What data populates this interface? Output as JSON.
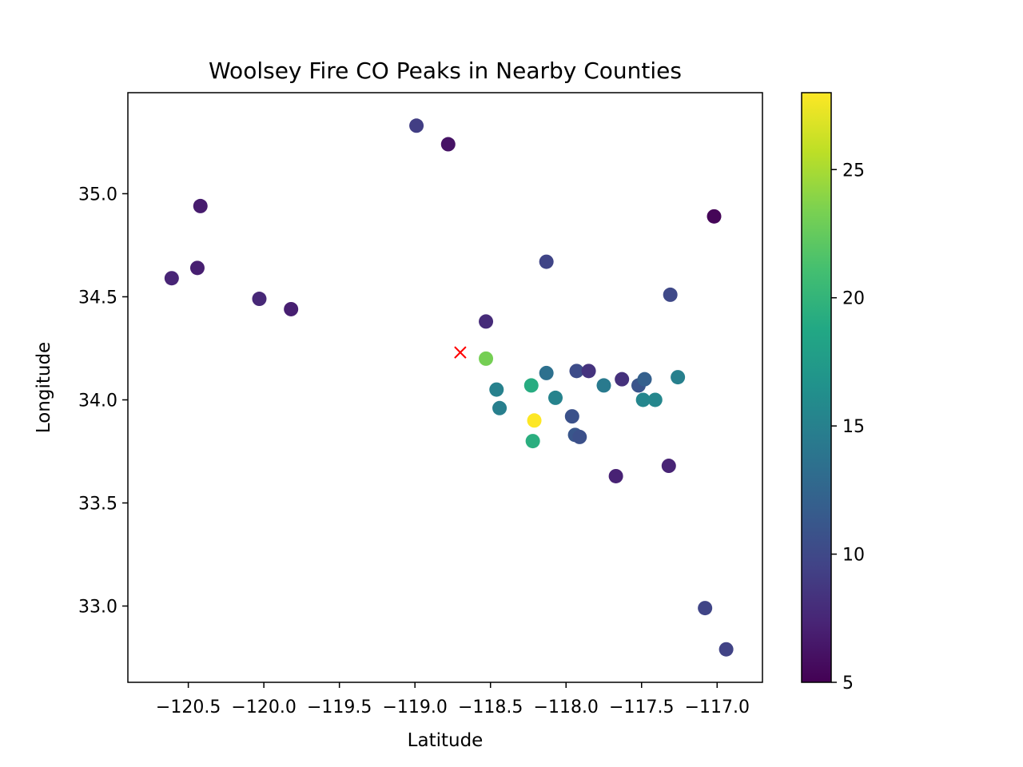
{
  "chart_data": {
    "type": "scatter",
    "title": "Woolsey Fire CO Peaks in Nearby Counties",
    "xlabel": "Latitude",
    "ylabel": "Longitude",
    "xlim": [
      -120.9,
      -116.7
    ],
    "ylim": [
      32.63,
      35.49
    ],
    "x_ticks": [
      -120.5,
      -120.0,
      -119.5,
      -119.0,
      -118.5,
      -118.0,
      -117.5,
      -117.0
    ],
    "x_tick_labels": [
      "−120.5",
      "−120.0",
      "−119.5",
      "−119.0",
      "−118.5",
      "−118.0",
      "−117.5",
      "−117.0"
    ],
    "y_ticks": [
      33.0,
      33.5,
      34.0,
      34.5,
      35.0
    ],
    "y_tick_labels": [
      "33.0",
      "33.5",
      "34.0",
      "34.5",
      "35.0"
    ],
    "grid": false,
    "colormap": "viridis",
    "colorbar": {
      "range": [
        5,
        28
      ],
      "ticks": [
        5,
        10,
        15,
        20,
        25
      ],
      "tick_labels": [
        "5",
        "10",
        "15",
        "20",
        "25"
      ]
    },
    "points": [
      {
        "x": -118.99,
        "y": 35.33,
        "value": 9.2
      },
      {
        "x": -118.78,
        "y": 35.24,
        "value": 6.2
      },
      {
        "x": -120.42,
        "y": 34.94,
        "value": 6.8
      },
      {
        "x": -117.02,
        "y": 34.89,
        "value": 5.3
      },
      {
        "x": -120.61,
        "y": 34.59,
        "value": 7.4
      },
      {
        "x": -120.44,
        "y": 34.64,
        "value": 7.0
      },
      {
        "x": -120.03,
        "y": 34.49,
        "value": 7.6
      },
      {
        "x": -119.82,
        "y": 34.44,
        "value": 7.0
      },
      {
        "x": -118.13,
        "y": 34.67,
        "value": 9.7
      },
      {
        "x": -117.31,
        "y": 34.51,
        "value": 10.0
      },
      {
        "x": -118.53,
        "y": 34.38,
        "value": 7.8
      },
      {
        "x": -118.53,
        "y": 34.2,
        "value": 23.2
      },
      {
        "x": -118.46,
        "y": 34.05,
        "value": 15.0
      },
      {
        "x": -118.23,
        "y": 34.07,
        "value": 19.2
      },
      {
        "x": -118.13,
        "y": 34.13,
        "value": 13.5
      },
      {
        "x": -117.93,
        "y": 34.14,
        "value": 10.3
      },
      {
        "x": -117.85,
        "y": 34.14,
        "value": 8.4
      },
      {
        "x": -117.63,
        "y": 34.1,
        "value": 8.2
      },
      {
        "x": -117.75,
        "y": 34.07,
        "value": 14.4
      },
      {
        "x": -117.52,
        "y": 34.07,
        "value": 11.0
      },
      {
        "x": -117.48,
        "y": 34.1,
        "value": 12.0
      },
      {
        "x": -117.26,
        "y": 34.11,
        "value": 14.9
      },
      {
        "x": -118.44,
        "y": 33.96,
        "value": 14.8
      },
      {
        "x": -118.07,
        "y": 34.01,
        "value": 15.2
      },
      {
        "x": -117.49,
        "y": 34.0,
        "value": 15.5
      },
      {
        "x": -117.41,
        "y": 34.0,
        "value": 15.6
      },
      {
        "x": -118.21,
        "y": 33.9,
        "value": 28.0
      },
      {
        "x": -117.96,
        "y": 33.92,
        "value": 10.7
      },
      {
        "x": -117.94,
        "y": 33.83,
        "value": 11.1
      },
      {
        "x": -117.91,
        "y": 33.82,
        "value": 10.6
      },
      {
        "x": -118.22,
        "y": 33.8,
        "value": 19.4
      },
      {
        "x": -117.67,
        "y": 33.63,
        "value": 7.2
      },
      {
        "x": -117.32,
        "y": 33.68,
        "value": 7.3
      },
      {
        "x": -117.08,
        "y": 32.99,
        "value": 9.7
      },
      {
        "x": -116.94,
        "y": 32.79,
        "value": 9.5
      }
    ],
    "marker": {
      "x": -118.7,
      "y": 34.23,
      "symbol": "x",
      "color": "#ff0000"
    }
  }
}
